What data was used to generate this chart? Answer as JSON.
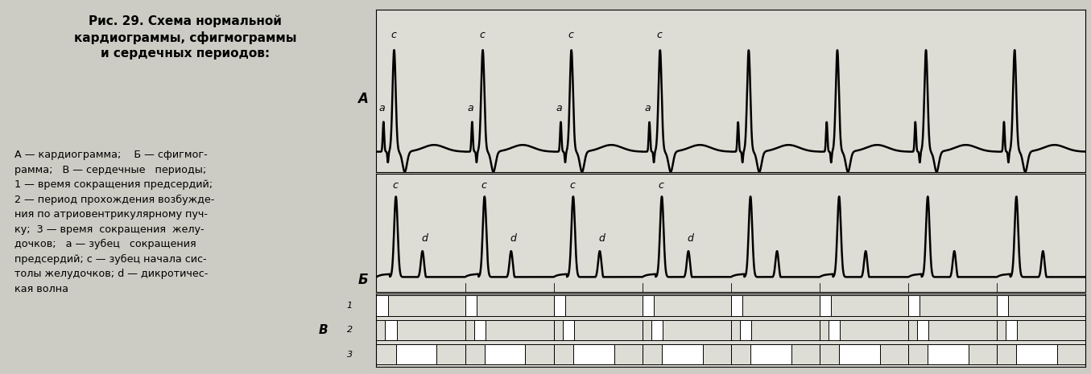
{
  "bg_color": "#ccccc4",
  "plot_bg": "#ddddd5",
  "period": 1.0,
  "num_periods": 8,
  "label_A": "А",
  "label_B": "Б",
  "label_V": "В",
  "label_1": "1",
  "label_2": "2",
  "label_3": "3",
  "label_a": "a",
  "label_c": "c",
  "label_d": "d",
  "title_line1": "Рис. 29. Схема нормальной",
  "title_line2": "кардиограммы, сфигмограммы",
  "title_line3": "и сердечных периодов:",
  "desc_lines": [
    "А — кардиограмма;    Б — сфигмог-",
    "рамма;   В — сердечные   периоды;",
    "1 — время сокращения предсердий;",
    "2 — период прохождения возбужде-",
    "ния по атриовентрикулярному пуч-",
    "ку;  3 — время  сокращения  желу-",
    "дочков;   a — зубец   сокращения",
    "предсердий; c — зубец начала сис-",
    "толы желудочков; d — дикротичес-",
    "кая волна"
  ]
}
